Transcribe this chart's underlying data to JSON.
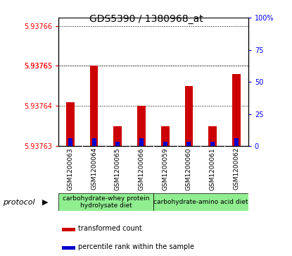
{
  "title": "GDS5390 / 1380968_at",
  "samples": [
    "GSM1200063",
    "GSM1200064",
    "GSM1200065",
    "GSM1200066",
    "GSM1200059",
    "GSM1200060",
    "GSM1200061",
    "GSM1200062"
  ],
  "red_values": [
    5.937641,
    5.93765,
    5.937635,
    5.93764,
    5.937635,
    5.937645,
    5.937635,
    5.937648
  ],
  "blue_values": [
    5.937632,
    5.937632,
    5.937631,
    5.937632,
    5.937631,
    5.937631,
    5.937631,
    5.937632
  ],
  "ymin": 5.93763,
  "ymax": 5.937662,
  "left_ytick_vals": [
    5.93763,
    5.93764,
    5.93765,
    5.93765,
    5.93766
  ],
  "left_ytick_labels": [
    "5.93763",
    "5.93764",
    "5.93765",
    "5.93765",
    "5.93766"
  ],
  "right_ytick_vals": [
    0,
    25,
    50,
    75,
    100
  ],
  "right_ytick_labels": [
    "0",
    "25",
    "50",
    "75",
    "100%"
  ],
  "red_color": "#cc0000",
  "blue_color": "#0000cc",
  "bar_width": 0.35,
  "blue_bar_width": 0.18,
  "group1_color": "#90EE90",
  "group2_color": "#90EE90",
  "group1_label": "carbohydrate-whey protein\nhydrolysate diet",
  "group2_label": "carbohydrate-amino acid diet",
  "legend_red_label": "transformed count",
  "legend_blue_label": "percentile rank within the sample",
  "protocol_label": "protocol",
  "title_fontsize": 10,
  "tick_fontsize": 7,
  "sample_fontsize": 6.5,
  "legend_fontsize": 7,
  "proto_fontsize": 6.5
}
